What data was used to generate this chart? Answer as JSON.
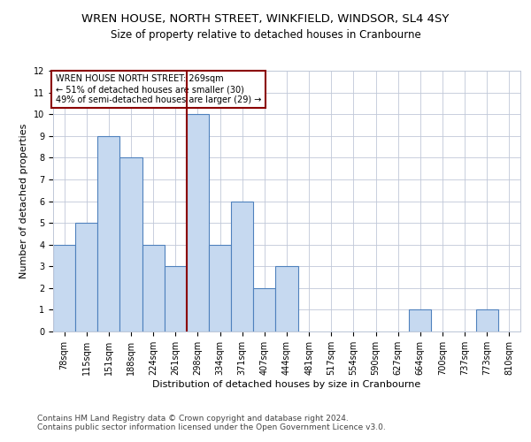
{
  "title": "WREN HOUSE, NORTH STREET, WINKFIELD, WINDSOR, SL4 4SY",
  "subtitle": "Size of property relative to detached houses in Cranbourne",
  "xlabel": "Distribution of detached houses by size in Cranbourne",
  "ylabel": "Number of detached properties",
  "categories": [
    "78sqm",
    "115sqm",
    "151sqm",
    "188sqm",
    "224sqm",
    "261sqm",
    "298sqm",
    "334sqm",
    "371sqm",
    "407sqm",
    "444sqm",
    "481sqm",
    "517sqm",
    "554sqm",
    "590sqm",
    "627sqm",
    "664sqm",
    "700sqm",
    "737sqm",
    "773sqm",
    "810sqm"
  ],
  "values": [
    4,
    5,
    9,
    8,
    4,
    3,
    10,
    4,
    6,
    2,
    3,
    0,
    0,
    0,
    0,
    0,
    1,
    0,
    0,
    1,
    0
  ],
  "bar_color": "#c6d9f0",
  "bar_edge_color": "#4f81bd",
  "red_line_index": 5.5,
  "annotation_line1": "WREN HOUSE NORTH STREET: 269sqm",
  "annotation_line2": "← 51% of detached houses are smaller (30)",
  "annotation_line3": "49% of semi-detached houses are larger (29) →",
  "ylim": [
    0,
    12
  ],
  "yticks": [
    0,
    1,
    2,
    3,
    4,
    5,
    6,
    7,
    8,
    9,
    10,
    11,
    12
  ],
  "footer1": "Contains HM Land Registry data © Crown copyright and database right 2024.",
  "footer2": "Contains public sector information licensed under the Open Government Licence v3.0.",
  "bg_color": "#ffffff",
  "grid_color": "#c0c8d8",
  "title_fontsize": 9.5,
  "subtitle_fontsize": 8.5,
  "axis_label_fontsize": 8,
  "tick_fontsize": 7,
  "annotation_fontsize": 7,
  "footer_fontsize": 6.5
}
